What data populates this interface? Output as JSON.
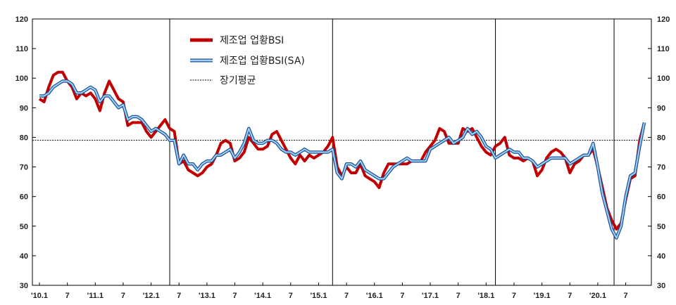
{
  "chart_data": {
    "type": "line",
    "title": "",
    "xlabel": "",
    "ylabel": "",
    "ylim": [
      30,
      120
    ],
    "y_ticks": [
      30,
      40,
      50,
      60,
      70,
      80,
      90,
      100,
      110,
      120
    ],
    "x_tick_labels": [
      {
        "i": 0,
        "label": "'10.1"
      },
      {
        "i": 6,
        "label": "7"
      },
      {
        "i": 12,
        "label": "'11.1"
      },
      {
        "i": 18,
        "label": "7"
      },
      {
        "i": 24,
        "label": "'12.1"
      },
      {
        "i": 30,
        "label": "7"
      },
      {
        "i": 36,
        "label": "'13.1"
      },
      {
        "i": 42,
        "label": "7"
      },
      {
        "i": 48,
        "label": "'14.1"
      },
      {
        "i": 54,
        "label": "7"
      },
      {
        "i": 60,
        "label": "'15.1"
      },
      {
        "i": 66,
        "label": "7"
      },
      {
        "i": 72,
        "label": "'16.1"
      },
      {
        "i": 78,
        "label": "7"
      },
      {
        "i": 84,
        "label": "'17.1"
      },
      {
        "i": 90,
        "label": "7"
      },
      {
        "i": 96,
        "label": "'18.1"
      },
      {
        "i": 102,
        "label": "7"
      },
      {
        "i": 108,
        "label": "'19.1"
      },
      {
        "i": 114,
        "label": "7"
      },
      {
        "i": 120,
        "label": "'20.1"
      },
      {
        "i": 126,
        "label": "7"
      }
    ],
    "vertical_markers": [
      28,
      63,
      98,
      123.5
    ],
    "long_term_average": 79,
    "legend": {
      "position": "top-left",
      "items": [
        "제조업 업황BSI",
        "제조업 업황BSI(SA)",
        "장기평균"
      ]
    },
    "colors": {
      "bsi": "#c00000",
      "sa_outer": "#1f4e9c",
      "sa_inner": "#9fd5f0",
      "average": "#000000",
      "marker": "#000000"
    },
    "series": [
      {
        "name": "제조업 업황BSI",
        "values": [
          93,
          92,
          97,
          101,
          102,
          102,
          99,
          97,
          93,
          95,
          94,
          95,
          93,
          89,
          95,
          99,
          96,
          93,
          92,
          84,
          85,
          85,
          85,
          82,
          80,
          82,
          84,
          86,
          83,
          82,
          71,
          72,
          69,
          68,
          67,
          68,
          70,
          71,
          74,
          78,
          79,
          78,
          72,
          73,
          75,
          80,
          78,
          76,
          76,
          77,
          81,
          82,
          79,
          76,
          73,
          71,
          74,
          72,
          74,
          73,
          74,
          75,
          77,
          80,
          70,
          67,
          70,
          68,
          68,
          71,
          67,
          66,
          65,
          63,
          68,
          71,
          71,
          71,
          71,
          71,
          72,
          72,
          72,
          75,
          77,
          79,
          83,
          82,
          78,
          78,
          78,
          83,
          82,
          83,
          80,
          77,
          75,
          74,
          77,
          78,
          80,
          74,
          73,
          73,
          72,
          73,
          72,
          67,
          69,
          73,
          75,
          76,
          75,
          73,
          68,
          71,
          72,
          74,
          74,
          76,
          70,
          63,
          56,
          52,
          49,
          51,
          59,
          66,
          67,
          79,
          85
        ],
        "values_note": "monthly, from Jan 2010"
      },
      {
        "name": "제조업 업황BSI(SA)",
        "values": [
          94,
          94,
          95,
          97,
          98,
          99,
          99,
          98,
          95,
          95,
          96,
          97,
          96,
          92,
          94,
          94,
          92,
          90,
          91,
          86,
          87,
          87,
          86,
          84,
          82,
          83,
          82,
          81,
          79,
          79,
          71,
          74,
          71,
          71,
          69,
          71,
          72,
          72,
          74,
          74,
          75,
          76,
          73,
          75,
          78,
          83,
          79,
          78,
          78,
          79,
          79,
          78,
          76,
          75,
          75,
          74,
          75,
          76,
          75,
          75,
          75,
          75,
          75,
          76,
          68,
          66,
          71,
          71,
          70,
          72,
          69,
          68,
          67,
          66,
          66,
          68,
          70,
          71,
          72,
          73,
          72,
          72,
          72,
          72,
          76,
          77,
          78,
          79,
          80,
          78,
          79,
          80,
          83,
          81,
          82,
          80,
          77,
          76,
          73,
          74,
          75,
          76,
          75,
          75,
          73,
          73,
          72,
          70,
          71,
          72,
          73,
          73,
          73,
          73,
          71,
          72,
          73,
          74,
          74,
          78,
          70,
          61,
          55,
          49,
          46,
          50,
          60,
          67,
          68,
          77,
          85
        ]
      }
    ]
  }
}
